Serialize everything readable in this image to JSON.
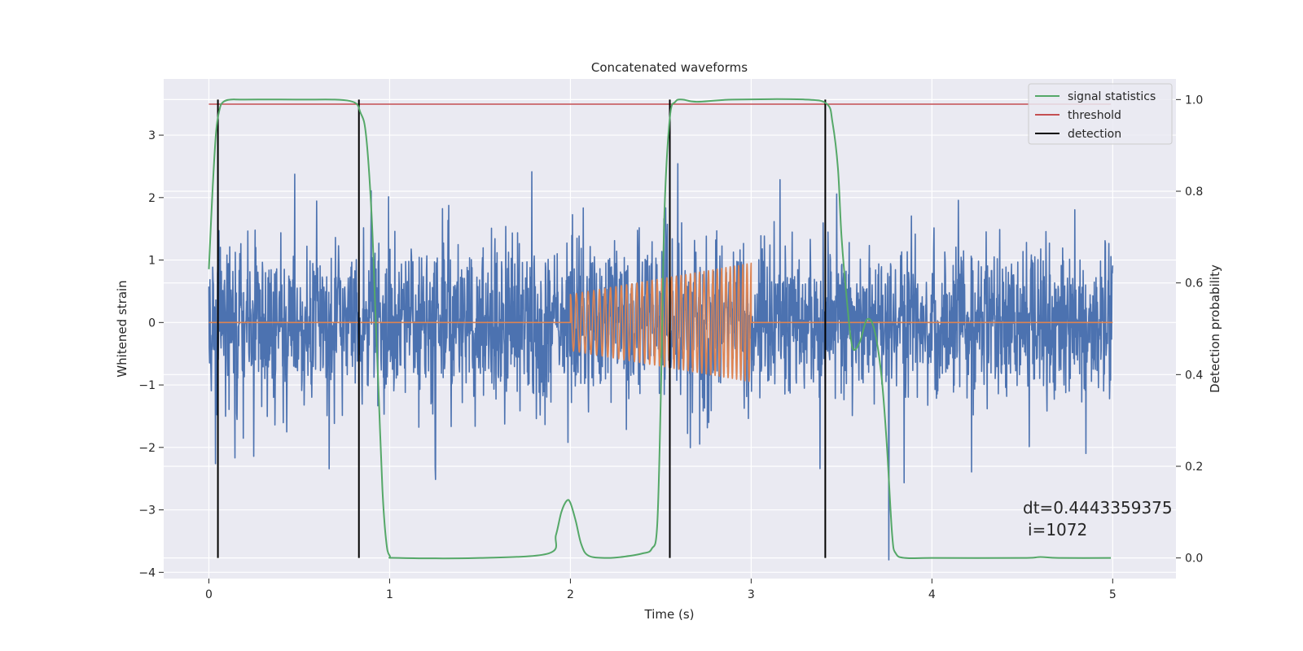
{
  "chart_data": {
    "type": "line",
    "title": "Concatenated waveforms",
    "xlabel": "Time (s)",
    "ylabel_left": "Whitened strain",
    "ylabel_right": "Detection probability",
    "xlim": [
      -0.25,
      5.35
    ],
    "ylim_left": [
      -4.1,
      3.9
    ],
    "ylim_right": [
      -0.045,
      1.045
    ],
    "x_ticks": [
      0,
      1,
      2,
      3,
      4,
      5
    ],
    "x_tick_labels": [
      "0",
      "1",
      "2",
      "3",
      "4",
      "5"
    ],
    "y_left_ticks": [
      3,
      2,
      1,
      0,
      -1,
      -2,
      -3,
      -4
    ],
    "y_left_tick_labels": [
      "3",
      "2",
      "1",
      "0",
      "−1",
      "−2",
      "−3",
      "−4"
    ],
    "y_right_ticks": [
      1.0,
      0.8,
      0.6,
      0.4,
      0.2,
      0.0
    ],
    "y_right_tick_labels": [
      "1.0",
      "0.8",
      "0.6",
      "0.4",
      "0.2",
      "0.0"
    ],
    "grid": true,
    "legend_position": "top-right",
    "legend": [
      {
        "label": "signal statistics",
        "color": "#55a868"
      },
      {
        "label": "threshold",
        "color": "#c44e52"
      },
      {
        "label": "detection",
        "color": "#000000"
      }
    ],
    "series": [
      {
        "role": "strain",
        "axis": "left",
        "color": "#4c72b0",
        "x_range": [
          0,
          5
        ],
        "noise_std": 0.62,
        "typical_peak": 2.8
      },
      {
        "role": "injected signal",
        "axis": "left",
        "color": "#dd8452",
        "x_range": [
          0,
          5
        ],
        "chirp_x_range": [
          2.0,
          3.0
        ],
        "chirp_amplitude_start": 0.45,
        "chirp_amplitude_end": 0.95
      },
      {
        "name": "signal statistics",
        "axis": "right",
        "color": "#55a868",
        "x": [
          0,
          0.02,
          0.04,
          0.06,
          0.08,
          0.12,
          0.2,
          0.5,
          0.78,
          0.84,
          0.87,
          0.9,
          0.92,
          0.94,
          0.96,
          0.98,
          1.0,
          1.05,
          1.5,
          1.88,
          1.92,
          1.95,
          1.98,
          2.0,
          2.03,
          2.06,
          2.1,
          2.2,
          2.3,
          2.4,
          2.45,
          2.48,
          2.5,
          2.52,
          2.55,
          2.58,
          2.62,
          2.7,
          2.9,
          3.3,
          3.42,
          3.45,
          3.48,
          3.5,
          3.53,
          3.56,
          3.6,
          3.64,
          3.68,
          3.72,
          3.75,
          3.78,
          3.8,
          3.85,
          4.0,
          4.5,
          4.6,
          4.7,
          4.99
        ],
        "y": [
          0.63,
          0.8,
          0.93,
          0.98,
          0.995,
          1.0,
          1.0,
          1.0,
          0.997,
          0.97,
          0.92,
          0.75,
          0.55,
          0.35,
          0.15,
          0.04,
          0.005,
          0.0,
          0.0,
          0.01,
          0.05,
          0.1,
          0.125,
          0.12,
          0.08,
          0.03,
          0.005,
          0.0,
          0.003,
          0.01,
          0.02,
          0.07,
          0.35,
          0.75,
          0.96,
          0.995,
          1.0,
          0.995,
          1.0,
          1.0,
          0.99,
          0.95,
          0.85,
          0.7,
          0.56,
          0.46,
          0.47,
          0.52,
          0.5,
          0.4,
          0.25,
          0.05,
          0.01,
          0.0,
          0.0,
          0.0,
          0.002,
          0.0,
          0.0
        ]
      },
      {
        "name": "threshold",
        "axis": "right",
        "color": "#c44e52",
        "x": [
          0,
          4.99
        ],
        "y": [
          0.99,
          0.99
        ]
      },
      {
        "name": "detection",
        "axis": "right",
        "color": "#000000",
        "vertical_lines_x": [
          0.05,
          0.83,
          2.55,
          3.41
        ],
        "y_range": [
          0.0,
          1.0
        ]
      }
    ],
    "annotations": [
      {
        "text": "dt=0.4443359375",
        "x": 4.5,
        "y": 0.11
      },
      {
        "text": "i=1072",
        "x": 4.53,
        "y": 0.065
      }
    ]
  }
}
